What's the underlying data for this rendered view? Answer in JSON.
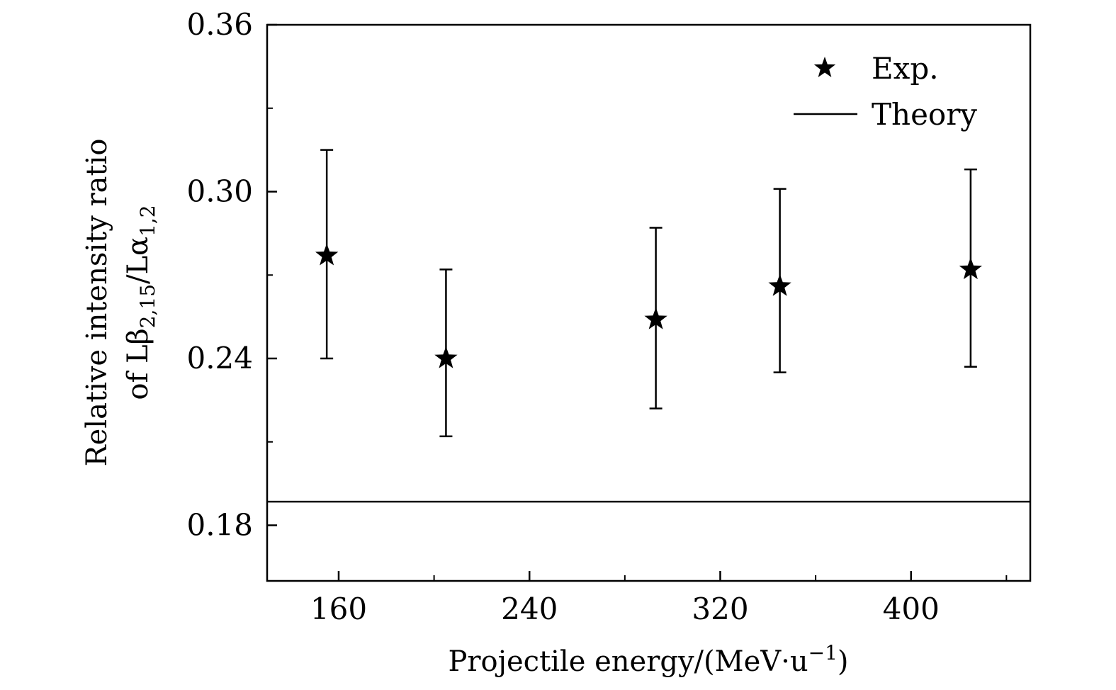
{
  "chart_data": {
    "type": "scatter",
    "title": "",
    "xlabel": "Projectile energy/(MeV·u⁻¹)",
    "xlabel_parts": {
      "main": "Projectile energy/(MeV·u",
      "sup": "−1",
      "close": ")"
    },
    "ylabel_line1": "Relative intensity ratio",
    "ylabel_line2_parts": {
      "a": "of Lβ",
      "sub1": "2,15",
      "b": "/Lα",
      "sub2": "1,2"
    },
    "xlim": [
      130,
      450
    ],
    "ylim": [
      0.16,
      0.36
    ],
    "x_ticks": [
      160,
      240,
      320,
      400
    ],
    "x_tick_labels": [
      "160",
      "240",
      "320",
      "400"
    ],
    "x_minor_ticks": [
      200,
      280,
      360,
      440
    ],
    "y_ticks": [
      0.18,
      0.24,
      0.3,
      0.36
    ],
    "y_tick_labels": [
      "0.18",
      "0.24",
      "0.30",
      "0.36"
    ],
    "y_minor_ticks": [
      0.21,
      0.27,
      0.33
    ],
    "series": [
      {
        "name": "Exp.",
        "marker": "star",
        "points": [
          {
            "x": 155,
            "y": 0.277,
            "err_low": 0.24,
            "err_high": 0.315
          },
          {
            "x": 205,
            "y": 0.24,
            "err_low": 0.212,
            "err_high": 0.272
          },
          {
            "x": 293,
            "y": 0.254,
            "err_low": 0.222,
            "err_high": 0.287
          },
          {
            "x": 345,
            "y": 0.266,
            "err_low": 0.235,
            "err_high": 0.301
          },
          {
            "x": 425,
            "y": 0.272,
            "err_low": 0.237,
            "err_high": 0.308
          }
        ]
      },
      {
        "name": "Theory",
        "marker": "line",
        "y": 0.1885
      }
    ],
    "legend": {
      "position": "top-right",
      "entries": [
        {
          "label": "Exp.",
          "marker": "star"
        },
        {
          "label": "Theory",
          "marker": "line"
        }
      ]
    },
    "color": "#000000"
  }
}
